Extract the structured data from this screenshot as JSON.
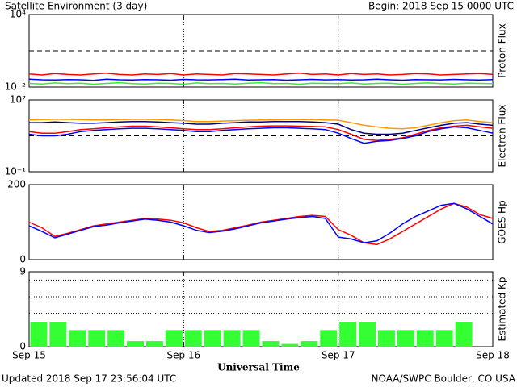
{
  "title": "Satellite Environment (3 day)",
  "begin": "Begin:  2018 Sep 15 0000 UTC",
  "updated": "Updated 2018 Sep 17 23:56:04 UTC",
  "credit": "NOAA/SWPC Boulder, CO USA",
  "x_axis": {
    "label": "Universal Time",
    "xlim": [
      0,
      72
    ],
    "xticks": [
      {
        "value": 0,
        "label": "Sep 15"
      },
      {
        "value": 24,
        "label": "Sep 16"
      },
      {
        "value": 48,
        "label": "Sep 17"
      },
      {
        "value": 72,
        "label": "Sep 18"
      }
    ]
  },
  "chart_data": [
    {
      "type": "line",
      "ylabel": "Proton Flux",
      "log_scale": true,
      "ylim": [
        0.01,
        10000
      ],
      "yticks": [
        {
          "value": 10000,
          "label": "10⁴"
        },
        {
          "value": 0.01,
          "label": "10⁻²"
        }
      ],
      "threshold": 10,
      "x": [
        0,
        2,
        4,
        6,
        8,
        10,
        12,
        14,
        16,
        18,
        20,
        22,
        24,
        26,
        28,
        30,
        32,
        34,
        36,
        38,
        40,
        42,
        44,
        46,
        48,
        50,
        52,
        54,
        56,
        58,
        60,
        62,
        64,
        66,
        68,
        70,
        72
      ],
      "series": [
        {
          "color": "#ff0000",
          "values": [
            0.12,
            0.1,
            0.13,
            0.11,
            0.1,
            0.12,
            0.14,
            0.11,
            0.1,
            0.12,
            0.11,
            0.13,
            0.1,
            0.12,
            0.11,
            0.1,
            0.13,
            0.12,
            0.11,
            0.1,
            0.12,
            0.14,
            0.11,
            0.12,
            0.1,
            0.13,
            0.11,
            0.12,
            0.1,
            0.11,
            0.13,
            0.12,
            0.1,
            0.11,
            0.12,
            0.13,
            0.11
          ]
        },
        {
          "color": "#0000ff",
          "values": [
            0.045,
            0.04,
            0.038,
            0.042,
            0.04,
            0.036,
            0.044,
            0.04,
            0.038,
            0.042,
            0.04,
            0.037,
            0.043,
            0.04,
            0.039,
            0.041,
            0.044,
            0.038,
            0.04,
            0.042,
            0.037,
            0.04,
            0.043,
            0.039,
            0.041,
            0.038,
            0.04,
            0.044,
            0.04,
            0.037,
            0.042,
            0.04,
            0.039,
            0.043,
            0.04,
            0.038,
            0.041
          ]
        },
        {
          "color": "#33ee33",
          "values": [
            0.02,
            0.018,
            0.022,
            0.019,
            0.021,
            0.017,
            0.02,
            0.023,
            0.019,
            0.018,
            0.021,
            0.02,
            0.017,
            0.022,
            0.019,
            0.02,
            0.018,
            0.021,
            0.023,
            0.019,
            0.02,
            0.017,
            0.021,
            0.02,
            0.019,
            0.022,
            0.018,
            0.02,
            0.021,
            0.017,
            0.02,
            0.022,
            0.019,
            0.018,
            0.021,
            0.02,
            0.019
          ]
        }
      ]
    },
    {
      "type": "line",
      "ylabel": "Electron Flux",
      "log_scale": true,
      "ylim": [
        0.1,
        10000000
      ],
      "yticks": [
        {
          "value": 10000000,
          "label": "10⁷"
        },
        {
          "value": 0.1,
          "label": "10⁻¹"
        }
      ],
      "threshold": 1000,
      "x": [
        0,
        2,
        4,
        6,
        8,
        10,
        12,
        14,
        16,
        18,
        20,
        22,
        24,
        26,
        28,
        30,
        32,
        34,
        36,
        38,
        40,
        42,
        44,
        46,
        48,
        50,
        52,
        54,
        56,
        58,
        60,
        62,
        64,
        66,
        68,
        70,
        72
      ],
      "series": [
        {
          "color": "#ff9900",
          "values": [
            60000,
            65000,
            70000,
            70000,
            65000,
            60000,
            60000,
            65000,
            70000,
            70000,
            65000,
            60000,
            50000,
            40000,
            40000,
            45000,
            50000,
            55000,
            60000,
            60000,
            65000,
            65000,
            65000,
            60000,
            55000,
            30000,
            15000,
            10000,
            7000,
            6000,
            8000,
            15000,
            30000,
            50000,
            60000,
            40000,
            30000
          ]
        },
        {
          "color": "#000080",
          "values": [
            30000,
            30000,
            35000,
            30000,
            25000,
            25000,
            30000,
            35000,
            40000,
            40000,
            35000,
            30000,
            25000,
            20000,
            20000,
            25000,
            30000,
            35000,
            35000,
            40000,
            40000,
            40000,
            35000,
            30000,
            20000,
            5000,
            2000,
            1500,
            1500,
            2000,
            4000,
            8000,
            15000,
            25000,
            30000,
            20000,
            15000
          ]
        },
        {
          "color": "#ff0000",
          "values": [
            3000,
            2000,
            2000,
            3000,
            5000,
            6000,
            8000,
            10000,
            12000,
            12000,
            10000,
            8000,
            6000,
            5000,
            5000,
            6000,
            8000,
            10000,
            12000,
            13000,
            13000,
            12000,
            11000,
            10000,
            5000,
            1500,
            400,
            300,
            400,
            600,
            1500,
            4000,
            8000,
            12000,
            15000,
            10000,
            7000
          ]
        },
        {
          "color": "#0000ff",
          "values": [
            1500,
            1000,
            1000,
            1500,
            3000,
            4000,
            5000,
            6000,
            7000,
            7000,
            6000,
            5000,
            4000,
            3000,
            3000,
            4000,
            5000,
            6000,
            7000,
            8000,
            8000,
            7000,
            6000,
            5000,
            2000,
            500,
            150,
            250,
            300,
            500,
            1000,
            3000,
            6000,
            10000,
            8000,
            4000,
            2000
          ]
        }
      ]
    },
    {
      "type": "line",
      "ylabel": "GOES Hp",
      "ylim": [
        0,
        200
      ],
      "yticks": [
        200,
        0
      ],
      "x": [
        0,
        2,
        4,
        6,
        8,
        10,
        12,
        14,
        16,
        18,
        20,
        22,
        24,
        26,
        28,
        30,
        32,
        34,
        36,
        38,
        40,
        42,
        44,
        46,
        48,
        50,
        52,
        54,
        56,
        58,
        60,
        62,
        64,
        66,
        68,
        70,
        72
      ],
      "series": [
        {
          "color": "#ff0000",
          "values": [
            100,
            85,
            62,
            70,
            80,
            90,
            95,
            100,
            105,
            110,
            108,
            105,
            98,
            85,
            75,
            78,
            85,
            92,
            100,
            105,
            110,
            115,
            118,
            115,
            80,
            65,
            45,
            40,
            55,
            75,
            95,
            115,
            135,
            150,
            140,
            120,
            110
          ]
        },
        {
          "color": "#0000ff",
          "values": [
            90,
            75,
            58,
            68,
            78,
            88,
            92,
            98,
            103,
            108,
            105,
            100,
            90,
            78,
            72,
            76,
            82,
            90,
            98,
            103,
            108,
            112,
            115,
            110,
            60,
            55,
            45,
            50,
            70,
            95,
            115,
            130,
            145,
            150,
            135,
            115,
            95
          ]
        }
      ]
    },
    {
      "type": "histogram",
      "ylabel": "Estimated Kp",
      "ylim": [
        0,
        9
      ],
      "yticks": [
        9,
        0
      ],
      "hlines": [
        4,
        6,
        8
      ],
      "color": "#33ff33",
      "bins": [
        0,
        3,
        6,
        9,
        12,
        15,
        18,
        21,
        24,
        27,
        30,
        33,
        36,
        39,
        42,
        45,
        48,
        51,
        54,
        57,
        60,
        63,
        66,
        69,
        72
      ],
      "values": [
        3,
        3,
        2,
        2,
        2,
        0.67,
        0.67,
        2,
        2,
        2,
        2,
        2,
        0.67,
        0.33,
        0.67,
        2,
        3,
        3,
        2,
        2,
        2,
        2,
        3,
        null
      ]
    }
  ]
}
